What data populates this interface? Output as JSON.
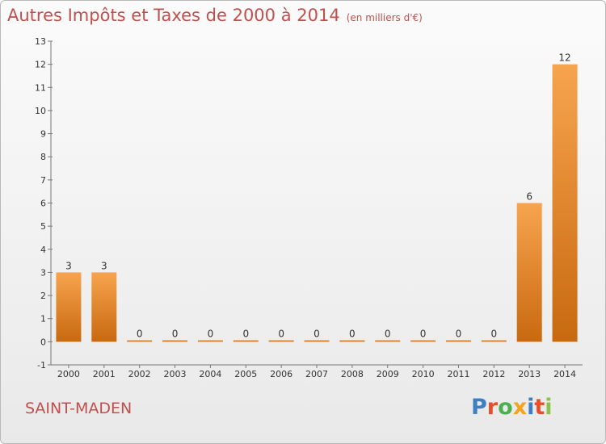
{
  "title": "Autres Impôts et Taxes de 2000 à 2014",
  "unit_note": "(en milliers d'€)",
  "commune": "SAINT-MADEN",
  "brand": {
    "letters": [
      "P",
      "r",
      "o",
      "x",
      "i",
      "t",
      "i"
    ],
    "colors": [
      "#3d7fc4",
      "#e94e2b",
      "#4caf50",
      "#f7a21b",
      "#3d7fc4",
      "#e94e2b",
      "#8bc34a"
    ]
  },
  "colors": {
    "bar_top": "#f7a44f",
    "bar_bottom": "#c8690f",
    "text": "#c0504d"
  },
  "chart_data": {
    "type": "bar",
    "categories": [
      "2000",
      "2001",
      "2002",
      "2003",
      "2004",
      "2005",
      "2006",
      "2007",
      "2008",
      "2009",
      "2010",
      "2011",
      "2012",
      "2013",
      "2014"
    ],
    "values": [
      3,
      3,
      0,
      0,
      0,
      0,
      0,
      0,
      0,
      0,
      0,
      0,
      0,
      6,
      12
    ],
    "data_labels": [
      "3",
      "3",
      "0",
      "0",
      "0",
      "0",
      "0",
      "0",
      "0",
      "0",
      "0",
      "0",
      "0",
      "6",
      "12"
    ],
    "ylim": [
      -1,
      13
    ],
    "yticks": [
      "-1",
      "0",
      "1",
      "2",
      "3",
      "4",
      "5",
      "6",
      "7",
      "8",
      "9",
      "10",
      "11",
      "12",
      "13"
    ],
    "grid": false,
    "title": "Autres Impôts et Taxes de 2000 à 2014",
    "xlabel": "",
    "ylabel": ""
  }
}
